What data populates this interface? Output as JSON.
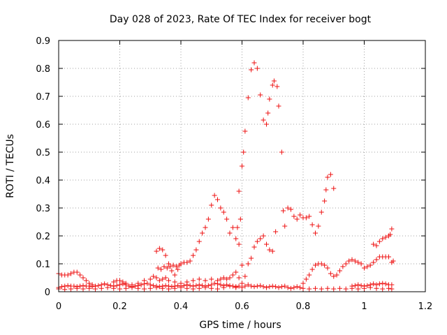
{
  "chart_data": {
    "type": "scatter",
    "title": "Day 028 of 2023, Rate Of TEC Index for receiver bogt",
    "xlabel": "GPS time / hours",
    "ylabel": "ROTI / TECUs",
    "xlim": [
      0,
      1.2
    ],
    "ylim": [
      0,
      0.9
    ],
    "xticks": [
      "0",
      "0.2",
      "0.4",
      "0.6",
      "0.8",
      "1",
      "1.2"
    ],
    "yticks": [
      "0",
      "0.1",
      "0.2",
      "0.3",
      "0.4",
      "0.5",
      "0.6",
      "0.7",
      "0.8",
      "0.9"
    ],
    "grid": true,
    "marker": "plus",
    "color": "#ee1111",
    "series": [
      {
        "points": [
          [
            0.43,
            0.11
          ],
          [
            0.44,
            0.13
          ],
          [
            0.45,
            0.15
          ],
          [
            0.46,
            0.18
          ],
          [
            0.47,
            0.21
          ],
          [
            0.48,
            0.23
          ],
          [
            0.49,
            0.26
          ],
          [
            0.5,
            0.31
          ],
          [
            0.51,
            0.345
          ],
          [
            0.52,
            0.33
          ],
          [
            0.53,
            0.3
          ],
          [
            0.54,
            0.285
          ],
          [
            0.55,
            0.26
          ],
          [
            0.56,
            0.21
          ],
          [
            0.57,
            0.23
          ],
          [
            0.58,
            0.19
          ],
          [
            0.585,
            0.23
          ],
          [
            0.59,
            0.36
          ],
          [
            0.595,
            0.26
          ],
          [
            0.6,
            0.45
          ],
          [
            0.605,
            0.5
          ],
          [
            0.61,
            0.575
          ],
          [
            0.62,
            0.695
          ],
          [
            0.63,
            0.795
          ],
          [
            0.64,
            0.82
          ],
          [
            0.65,
            0.8
          ],
          [
            0.66,
            0.705
          ],
          [
            0.67,
            0.615
          ],
          [
            0.68,
            0.6
          ],
          [
            0.685,
            0.64
          ],
          [
            0.69,
            0.69
          ],
          [
            0.7,
            0.74
          ],
          [
            0.705,
            0.755
          ],
          [
            0.715,
            0.735
          ],
          [
            0.72,
            0.665
          ],
          [
            0.73,
            0.5
          ],
          [
            0.735,
            0.29
          ],
          [
            0.74,
            0.235
          ],
          [
            0.75,
            0.3
          ],
          [
            0.76,
            0.295
          ],
          [
            0.77,
            0.27
          ],
          [
            0.78,
            0.26
          ],
          [
            0.79,
            0.275
          ],
          [
            0.8,
            0.265
          ],
          [
            0.81,
            0.265
          ],
          [
            0.82,
            0.27
          ],
          [
            0.83,
            0.24
          ],
          [
            0.84,
            0.21
          ],
          [
            0.85,
            0.235
          ],
          [
            0.86,
            0.285
          ],
          [
            0.87,
            0.325
          ],
          [
            0.875,
            0.365
          ],
          [
            0.88,
            0.41
          ],
          [
            0.89,
            0.42
          ],
          [
            0.9,
            0.37
          ]
        ]
      },
      {
        "points": [
          [
            0.32,
            0.145
          ],
          [
            0.33,
            0.155
          ],
          [
            0.34,
            0.15
          ],
          [
            0.35,
            0.13
          ],
          [
            0.36,
            0.1
          ],
          [
            0.37,
            0.075
          ],
          [
            0.38,
            0.06
          ],
          [
            0.39,
            0.08
          ],
          [
            0.4,
            0.1
          ],
          [
            0.41,
            0.105
          ],
          [
            0.42,
            0.105
          ],
          [
            0.325,
            0.085
          ],
          [
            0.335,
            0.08
          ],
          [
            0.345,
            0.09
          ],
          [
            0.355,
            0.085
          ],
          [
            0.365,
            0.09
          ],
          [
            0.375,
            0.095
          ],
          [
            0.385,
            0.09
          ],
          [
            0.395,
            0.095
          ]
        ]
      },
      {
        "points": [
          [
            0.59,
            0.17
          ],
          [
            0.6,
            0.095
          ],
          [
            0.61,
            0.055
          ],
          [
            0.62,
            0.1
          ],
          [
            0.63,
            0.12
          ],
          [
            0.64,
            0.16
          ],
          [
            0.65,
            0.18
          ],
          [
            0.66,
            0.19
          ],
          [
            0.67,
            0.2
          ],
          [
            0.68,
            0.17
          ],
          [
            0.69,
            0.15
          ],
          [
            0.7,
            0.145
          ],
          [
            0.71,
            0.215
          ]
        ]
      },
      {
        "points": [
          [
            0.8,
            0.03
          ],
          [
            0.81,
            0.045
          ],
          [
            0.82,
            0.06
          ],
          [
            0.83,
            0.08
          ],
          [
            0.84,
            0.095
          ],
          [
            0.85,
            0.1
          ],
          [
            0.86,
            0.1
          ],
          [
            0.87,
            0.095
          ],
          [
            0.88,
            0.085
          ],
          [
            0.89,
            0.065
          ],
          [
            0.9,
            0.055
          ],
          [
            0.91,
            0.06
          ],
          [
            0.92,
            0.075
          ],
          [
            0.93,
            0.09
          ],
          [
            0.94,
            0.1
          ],
          [
            0.95,
            0.11
          ],
          [
            0.96,
            0.115
          ],
          [
            0.97,
            0.11
          ],
          [
            0.98,
            0.105
          ],
          [
            0.99,
            0.1
          ],
          [
            1.0,
            0.085
          ],
          [
            1.01,
            0.09
          ],
          [
            1.02,
            0.095
          ],
          [
            1.03,
            0.105
          ],
          [
            1.04,
            0.115
          ],
          [
            1.05,
            0.125
          ],
          [
            1.06,
            0.125
          ],
          [
            1.07,
            0.125
          ],
          [
            1.08,
            0.125
          ],
          [
            1.09,
            0.105
          ],
          [
            1.095,
            0.11
          ]
        ]
      },
      {
        "points": [
          [
            1.03,
            0.17
          ],
          [
            1.04,
            0.165
          ],
          [
            1.05,
            0.18
          ],
          [
            1.06,
            0.19
          ],
          [
            1.07,
            0.195
          ],
          [
            1.08,
            0.2
          ],
          [
            1.085,
            0.205
          ],
          [
            1.09,
            0.225
          ]
        ]
      },
      {
        "points": [
          [
            0.0,
            0.065
          ],
          [
            0.01,
            0.06
          ],
          [
            0.02,
            0.06
          ],
          [
            0.03,
            0.06
          ],
          [
            0.04,
            0.065
          ],
          [
            0.05,
            0.07
          ],
          [
            0.06,
            0.07
          ],
          [
            0.07,
            0.06
          ],
          [
            0.08,
            0.05
          ],
          [
            0.09,
            0.04
          ],
          [
            0.1,
            0.03
          ],
          [
            0.11,
            0.025
          ],
          [
            0.12,
            0.02
          ]
        ]
      },
      {
        "points": [
          [
            0.18,
            0.035
          ],
          [
            0.19,
            0.04
          ],
          [
            0.2,
            0.04
          ],
          [
            0.21,
            0.035
          ],
          [
            0.22,
            0.03
          ],
          [
            0.24,
            0.025
          ],
          [
            0.26,
            0.03
          ],
          [
            0.28,
            0.04
          ],
          [
            0.3,
            0.045
          ],
          [
            0.31,
            0.055
          ],
          [
            0.32,
            0.05
          ],
          [
            0.33,
            0.04
          ],
          [
            0.34,
            0.045
          ],
          [
            0.35,
            0.05
          ],
          [
            0.36,
            0.04
          ],
          [
            0.38,
            0.035
          ],
          [
            0.4,
            0.03
          ],
          [
            0.42,
            0.035
          ],
          [
            0.44,
            0.04
          ],
          [
            0.46,
            0.045
          ],
          [
            0.48,
            0.04
          ],
          [
            0.5,
            0.045
          ],
          [
            0.52,
            0.04
          ],
          [
            0.53,
            0.045
          ],
          [
            0.54,
            0.05
          ],
          [
            0.55,
            0.045
          ],
          [
            0.56,
            0.05
          ],
          [
            0.57,
            0.06
          ],
          [
            0.58,
            0.07
          ],
          [
            0.59,
            0.05
          ],
          [
            0.6,
            0.03
          ]
        ]
      },
      {
        "points": [
          [
            0.0,
            0.015
          ],
          [
            0.01,
            0.018
          ],
          [
            0.02,
            0.02
          ],
          [
            0.03,
            0.022
          ],
          [
            0.04,
            0.02
          ],
          [
            0.05,
            0.02
          ],
          [
            0.06,
            0.018
          ],
          [
            0.07,
            0.02
          ],
          [
            0.08,
            0.022
          ],
          [
            0.09,
            0.02
          ],
          [
            0.1,
            0.02
          ],
          [
            0.11,
            0.018
          ],
          [
            0.12,
            0.02
          ],
          [
            0.13,
            0.022
          ],
          [
            0.14,
            0.025
          ],
          [
            0.15,
            0.028
          ],
          [
            0.16,
            0.025
          ],
          [
            0.17,
            0.022
          ],
          [
            0.18,
            0.02
          ],
          [
            0.19,
            0.022
          ],
          [
            0.2,
            0.025
          ],
          [
            0.21,
            0.028
          ],
          [
            0.22,
            0.025
          ],
          [
            0.23,
            0.02
          ],
          [
            0.24,
            0.018
          ],
          [
            0.25,
            0.02
          ],
          [
            0.26,
            0.022
          ],
          [
            0.27,
            0.025
          ],
          [
            0.28,
            0.028
          ],
          [
            0.29,
            0.03
          ],
          [
            0.3,
            0.025
          ],
          [
            0.31,
            0.022
          ],
          [
            0.32,
            0.02
          ],
          [
            0.33,
            0.018
          ],
          [
            0.34,
            0.02
          ],
          [
            0.35,
            0.022
          ],
          [
            0.36,
            0.02
          ],
          [
            0.37,
            0.018
          ],
          [
            0.38,
            0.02
          ],
          [
            0.39,
            0.022
          ],
          [
            0.4,
            0.02
          ],
          [
            0.41,
            0.022
          ],
          [
            0.42,
            0.025
          ],
          [
            0.43,
            0.022
          ],
          [
            0.44,
            0.02
          ],
          [
            0.45,
            0.022
          ],
          [
            0.46,
            0.025
          ],
          [
            0.47,
            0.022
          ],
          [
            0.48,
            0.02
          ],
          [
            0.49,
            0.022
          ],
          [
            0.5,
            0.025
          ],
          [
            0.51,
            0.03
          ],
          [
            0.52,
            0.028
          ],
          [
            0.53,
            0.025
          ],
          [
            0.54,
            0.022
          ],
          [
            0.55,
            0.025
          ],
          [
            0.56,
            0.022
          ],
          [
            0.57,
            0.02
          ],
          [
            0.58,
            0.018
          ],
          [
            0.59,
            0.02
          ]
        ]
      },
      {
        "points": [
          [
            0.0,
            0.01
          ],
          [
            0.02,
            0.008
          ],
          [
            0.04,
            0.01
          ],
          [
            0.06,
            0.012
          ],
          [
            0.08,
            0.01
          ],
          [
            0.1,
            0.012
          ],
          [
            0.12,
            0.01
          ],
          [
            0.14,
            0.012
          ],
          [
            0.16,
            0.015
          ],
          [
            0.18,
            0.012
          ],
          [
            0.2,
            0.01
          ],
          [
            0.22,
            0.012
          ],
          [
            0.24,
            0.015
          ],
          [
            0.26,
            0.012
          ],
          [
            0.28,
            0.01
          ],
          [
            0.3,
            0.012
          ],
          [
            0.32,
            0.015
          ],
          [
            0.34,
            0.012
          ],
          [
            0.36,
            0.01
          ],
          [
            0.38,
            0.012
          ],
          [
            0.4,
            0.015
          ],
          [
            0.42,
            0.012
          ],
          [
            0.44,
            0.01
          ],
          [
            0.46,
            0.012
          ],
          [
            0.48,
            0.015
          ],
          [
            0.5,
            0.012
          ],
          [
            0.52,
            0.01
          ],
          [
            0.54,
            0.015
          ],
          [
            0.56,
            0.02
          ],
          [
            0.58,
            0.015
          ],
          [
            0.6,
            0.015
          ],
          [
            0.61,
            0.02
          ],
          [
            0.62,
            0.025
          ],
          [
            0.63,
            0.02
          ],
          [
            0.64,
            0.018
          ],
          [
            0.65,
            0.02
          ],
          [
            0.66,
            0.022
          ],
          [
            0.67,
            0.018
          ],
          [
            0.68,
            0.015
          ],
          [
            0.69,
            0.018
          ],
          [
            0.7,
            0.02
          ],
          [
            0.71,
            0.018
          ],
          [
            0.72,
            0.015
          ],
          [
            0.73,
            0.018
          ],
          [
            0.74,
            0.02
          ],
          [
            0.75,
            0.015
          ],
          [
            0.76,
            0.012
          ],
          [
            0.77,
            0.015
          ],
          [
            0.78,
            0.018
          ],
          [
            0.79,
            0.015
          ],
          [
            0.8,
            0.012
          ],
          [
            0.82,
            0.01
          ],
          [
            0.84,
            0.012
          ],
          [
            0.86,
            0.01
          ],
          [
            0.88,
            0.012
          ],
          [
            0.9,
            0.01
          ],
          [
            0.92,
            0.012
          ],
          [
            0.94,
            0.01
          ],
          [
            0.96,
            0.012
          ],
          [
            0.98,
            0.01
          ],
          [
            1.0,
            0.012
          ],
          [
            1.02,
            0.015
          ],
          [
            1.04,
            0.012
          ],
          [
            1.06,
            0.01
          ],
          [
            1.08,
            0.012
          ],
          [
            1.09,
            0.01
          ]
        ]
      },
      {
        "points": [
          [
            0.96,
            0.02
          ],
          [
            0.97,
            0.022
          ],
          [
            0.98,
            0.025
          ],
          [
            0.99,
            0.022
          ],
          [
            1.0,
            0.02
          ],
          [
            1.01,
            0.022
          ],
          [
            1.02,
            0.025
          ],
          [
            1.03,
            0.028
          ],
          [
            1.04,
            0.025
          ],
          [
            1.05,
            0.028
          ],
          [
            1.06,
            0.03
          ],
          [
            1.07,
            0.028
          ],
          [
            1.08,
            0.025
          ],
          [
            1.09,
            0.025
          ]
        ]
      }
    ]
  }
}
